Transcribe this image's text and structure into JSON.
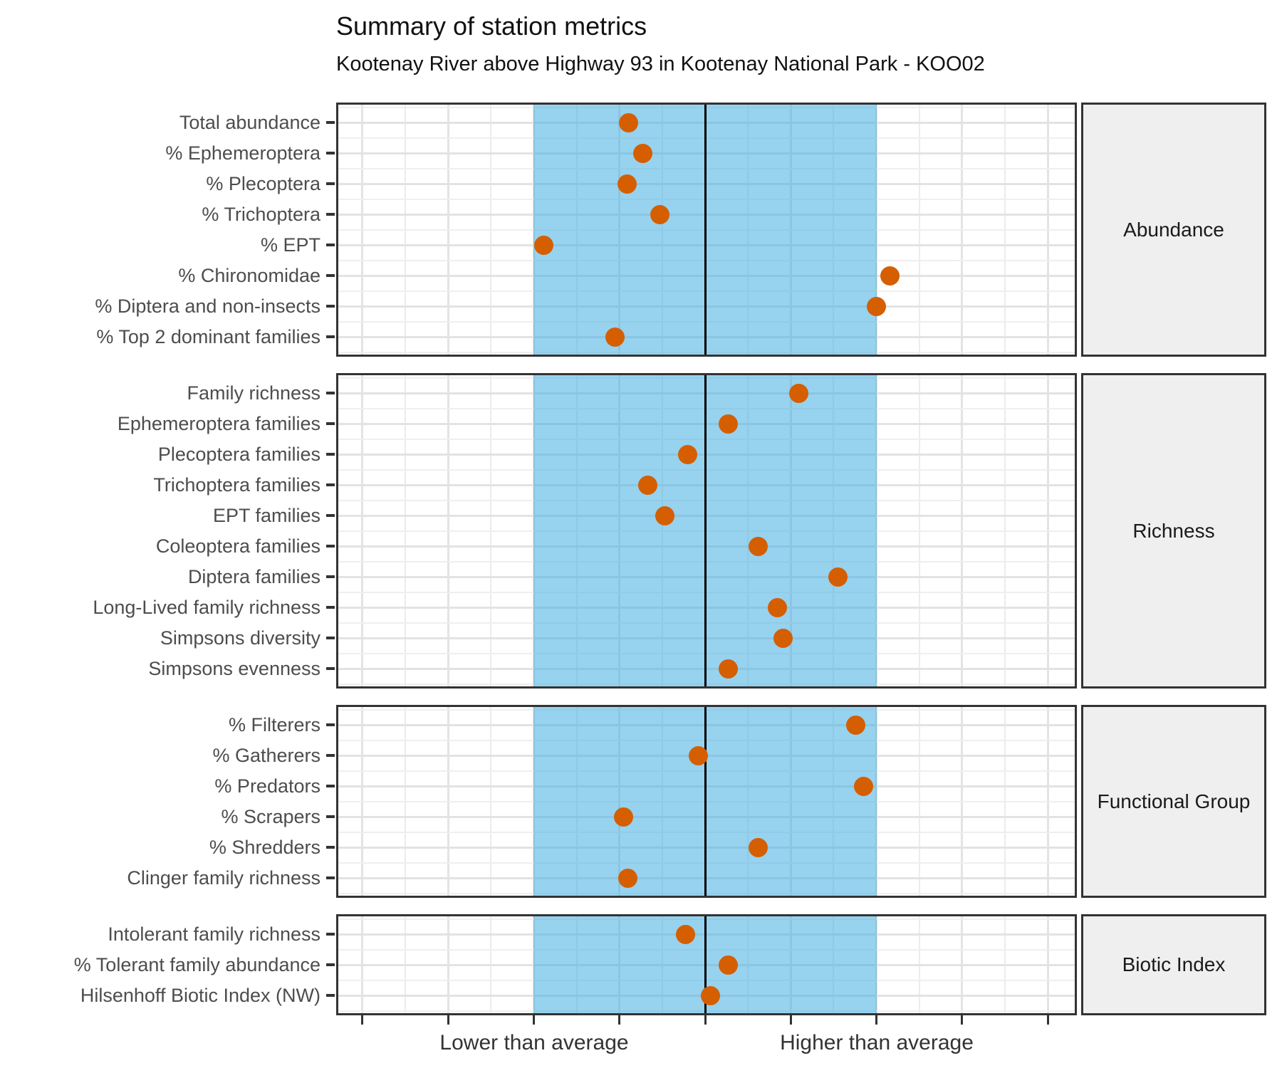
{
  "chart_data": {
    "type": "scatter",
    "title": "Summary of station metrics",
    "subtitle": "Kootenay River above Highway 93 in Kootenay National Park - KOO02",
    "x_axis": {
      "label_low": "Lower than average",
      "label_high": "Higher than average",
      "labeled_break_units": {
        "low": -2,
        "high": 2
      },
      "tick_positions_units": [
        -4,
        -3,
        -2,
        -1,
        0,
        1,
        2,
        3,
        4
      ],
      "range_units": [
        -4.3,
        4.35
      ],
      "average_band_units": [
        -2,
        2
      ],
      "centerline_unit": 0,
      "grid": true
    },
    "legend_position": "none",
    "panels": [
      {
        "label": "Abundance",
        "rows": [
          {
            "label": "Total abundance",
            "value": -0.89
          },
          {
            "label": "% Ephemeroptera",
            "value": -0.73
          },
          {
            "label": "% Plecoptera",
            "value": -0.91
          },
          {
            "label": "% Trichoptera",
            "value": -0.53
          },
          {
            "label": "% EPT",
            "value": -1.88
          },
          {
            "label": "% Chironomidae",
            "value": 2.16
          },
          {
            "label": "% Diptera and non-insects",
            "value": 2.0
          },
          {
            "label": "% Top 2 dominant families",
            "value": -1.05
          }
        ]
      },
      {
        "label": "Richness",
        "rows": [
          {
            "label": "Family richness",
            "value": 1.09
          },
          {
            "label": "Ephemeroptera families",
            "value": 0.27
          },
          {
            "label": "Plecoptera families",
            "value": -0.2
          },
          {
            "label": "Trichoptera families",
            "value": -0.67
          },
          {
            "label": "EPT families",
            "value": -0.47
          },
          {
            "label": "Coleoptera families",
            "value": 0.62
          },
          {
            "label": "Diptera families",
            "value": 1.55
          },
          {
            "label": "Long-Lived family richness",
            "value": 0.84
          },
          {
            "label": "Simpsons diversity",
            "value": 0.91
          },
          {
            "label": "Simpsons evenness",
            "value": 0.27
          }
        ]
      },
      {
        "label": "Functional Group",
        "rows": [
          {
            "label": "% Filterers",
            "value": 1.76
          },
          {
            "label": "% Gatherers",
            "value": -0.08
          },
          {
            "label": "% Predators",
            "value": 1.85
          },
          {
            "label": "% Scrapers",
            "value": -0.95
          },
          {
            "label": "% Shredders",
            "value": 0.62
          },
          {
            "label": "Clinger family richness",
            "value": -0.9
          }
        ]
      },
      {
        "label": "Biotic Index",
        "rows": [
          {
            "label": "Intolerant family richness",
            "value": -0.23
          },
          {
            "label": "% Tolerant family abundance",
            "value": 0.27
          },
          {
            "label": "Hilsenhoff Biotic Index (NW)",
            "value": 0.06
          }
        ]
      }
    ],
    "colors": {
      "point": "#D55E00",
      "average_band": "#97D2EE",
      "centerline": "#000000",
      "panel_border": "#333333",
      "strip_background": "#EFEFEF",
      "gridline": "#E3E3E3",
      "axis_text": "#4D4D4D"
    }
  }
}
